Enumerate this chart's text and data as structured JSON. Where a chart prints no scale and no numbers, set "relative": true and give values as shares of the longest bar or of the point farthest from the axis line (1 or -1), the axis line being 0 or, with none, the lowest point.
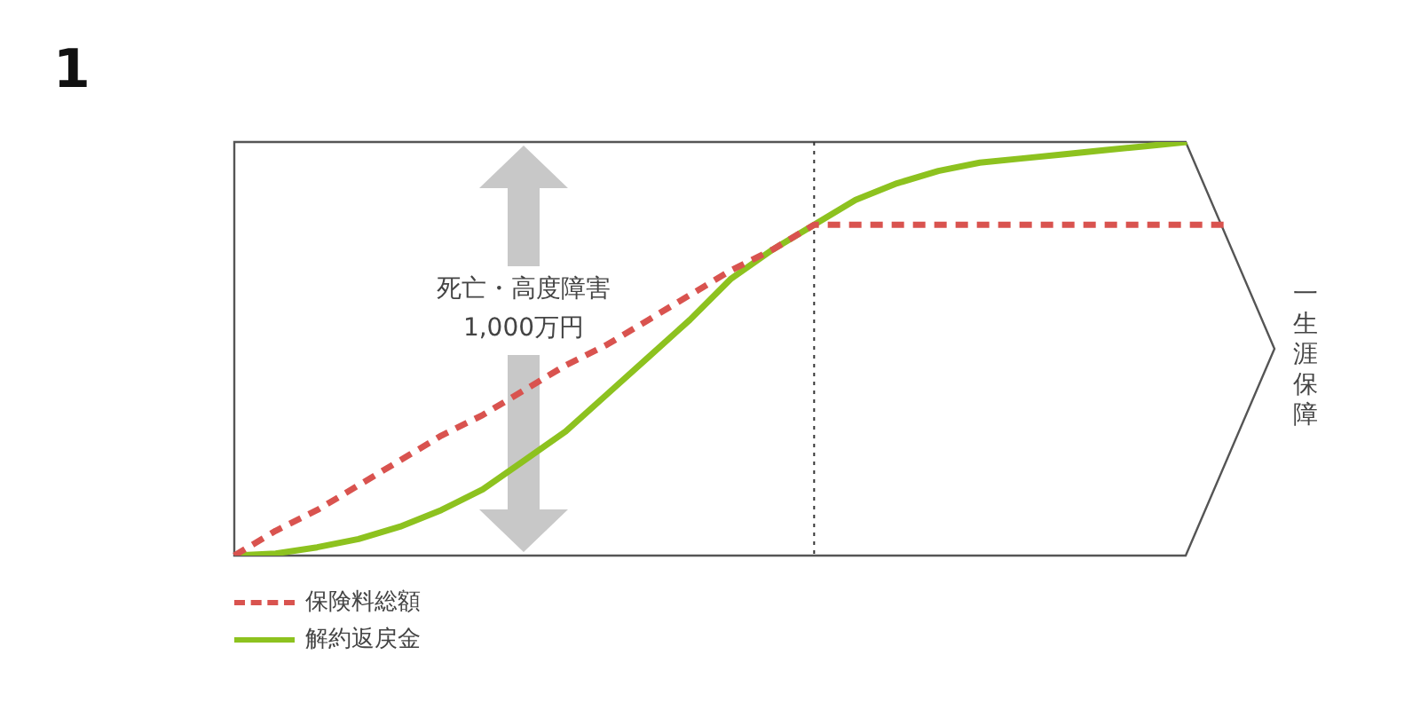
{
  "chart_data": {
    "type": "line",
    "title": "1",
    "relative": true,
    "marker": "none",
    "legend": "bottom left",
    "categories": [
      null,
      null,
      null,
      null,
      null,
      null,
      null,
      null,
      null,
      null,
      null,
      null,
      null,
      null,
      null,
      null,
      null,
      null,
      null,
      null,
      null,
      null,
      null,
      null,
      null
    ],
    "series": [
      {
        "name": "保険料総額",
        "color": "#d9534f",
        "line_style": "dashed",
        "values": [
          0,
          0.06,
          0.11,
          0.17,
          0.23,
          0.29,
          0.34,
          0.4,
          0.46,
          0.51,
          0.57,
          0.63,
          0.69,
          0.74,
          0.8,
          0.8,
          0.8,
          0.8,
          0.8,
          0.8,
          0.8,
          0.8,
          0.8,
          0.8,
          0.8
        ]
      },
      {
        "name": "解約返戻金",
        "color": "#8dc21f",
        "line_style": "solid",
        "values": [
          0,
          0.005,
          0.02,
          0.04,
          0.07,
          0.11,
          0.16,
          0.23,
          0.3,
          0.39,
          0.48,
          0.57,
          0.67,
          0.74,
          0.8,
          0.86,
          0.9,
          0.93,
          0.95,
          0.96,
          0.97,
          0.98,
          0.99,
          1,
          null
        ]
      }
    ],
    "annotations": [
      "死亡・高度障害\n1,000万円",
      "一生涯保障"
    ]
  }
}
